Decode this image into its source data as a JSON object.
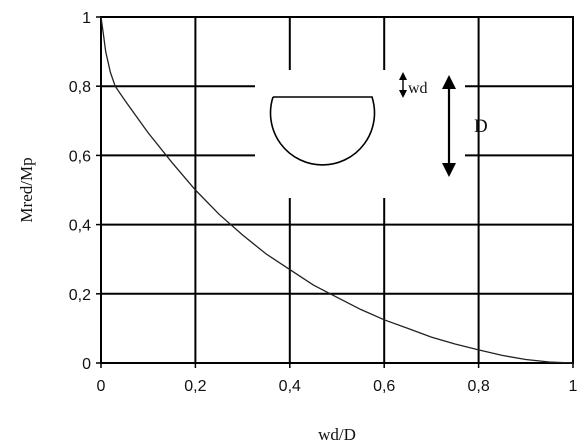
{
  "chart_data": {
    "type": "line",
    "title": "",
    "xlabel": "wd/D",
    "ylabel": "Mred/Mp",
    "xlim": [
      0,
      1
    ],
    "ylim": [
      0,
      1
    ],
    "x_ticks": [
      "0",
      "0,2",
      "0,4",
      "0,6",
      "0,8",
      "1"
    ],
    "y_ticks": [
      "0",
      "0,2",
      "0,4",
      "0,6",
      "0,8",
      "1"
    ],
    "grid": true,
    "legend": "none",
    "series": [
      {
        "x": [
          0,
          0.005,
          0.01,
          0.02,
          0.03,
          0.05,
          0.1,
          0.15,
          0.2,
          0.25,
          0.3,
          0.35,
          0.4,
          0.45,
          0.5,
          0.55,
          0.6,
          0.65,
          0.7,
          0.75,
          0.8,
          0.85,
          0.9,
          0.95,
          1.0
        ],
        "y": [
          1.0,
          0.95,
          0.9,
          0.84,
          0.8,
          0.76,
          0.665,
          0.58,
          0.5,
          0.43,
          0.37,
          0.315,
          0.27,
          0.225,
          0.19,
          0.155,
          0.125,
          0.1,
          0.075,
          0.055,
          0.038,
          0.022,
          0.01,
          0.003,
          0.0
        ]
      }
    ],
    "annotations": {
      "wd": "wd",
      "D": "D"
    }
  }
}
